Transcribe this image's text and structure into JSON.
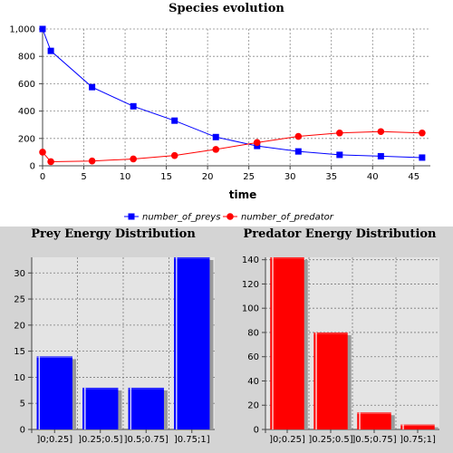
{
  "chart_data": [
    {
      "type": "line",
      "title": "Species evolution",
      "xlabel": "time",
      "ylabel": "",
      "xlim": [
        0,
        47
      ],
      "ylim": [
        0,
        1000
      ],
      "x_ticks": [
        0,
        5,
        10,
        15,
        20,
        25,
        30,
        35,
        40,
        45
      ],
      "y_ticks": [
        0,
        200,
        400,
        600,
        800,
        1000
      ],
      "y_tick_labels": [
        "0",
        "200",
        "400",
        "600",
        "800",
        "1,000"
      ],
      "grid": true,
      "legend_position": "bottom",
      "series": [
        {
          "name": "number_of_preys",
          "color": "#0000ff",
          "marker": "square",
          "points": [
            [
              0,
              1000
            ],
            [
              1,
              840
            ],
            [
              6,
              575
            ],
            [
              11,
              435
            ],
            [
              16,
              330
            ],
            [
              21,
              210
            ],
            [
              26,
              145
            ],
            [
              31,
              105
            ],
            [
              36,
              80
            ],
            [
              41,
              70
            ],
            [
              46,
              60
            ]
          ]
        },
        {
          "name": "number_of_predator",
          "color": "#ff0000",
          "marker": "circle",
          "points": [
            [
              0,
              100
            ],
            [
              1,
              30
            ],
            [
              6,
              35
            ],
            [
              11,
              50
            ],
            [
              16,
              75
            ],
            [
              21,
              120
            ],
            [
              26,
              170
            ],
            [
              31,
              215
            ],
            [
              36,
              240
            ],
            [
              41,
              250
            ],
            [
              46,
              240
            ]
          ]
        }
      ]
    },
    {
      "type": "bar",
      "title": "Prey Energy Distribution",
      "categories": [
        "]0;0.25]",
        "]0.25;0.5]",
        "]0.5;0.75]",
        "]0.75;1]"
      ],
      "values": [
        14,
        8,
        8,
        33
      ],
      "ylim": [
        0,
        33
      ],
      "y_ticks": [
        0,
        5,
        10,
        15,
        20,
        25,
        30
      ],
      "color": "#0000ff",
      "grid": true
    },
    {
      "type": "bar",
      "title": "Predator Energy Distribution",
      "categories": [
        "]0;0.25]",
        "]0.25;0.5]",
        "]0.5;0.75]",
        "]0.75;1]"
      ],
      "values": [
        142,
        80,
        14,
        4
      ],
      "ylim": [
        0,
        142
      ],
      "y_ticks": [
        0,
        20,
        40,
        60,
        80,
        100,
        120,
        140
      ],
      "color": "#ff0000",
      "grid": true
    }
  ]
}
